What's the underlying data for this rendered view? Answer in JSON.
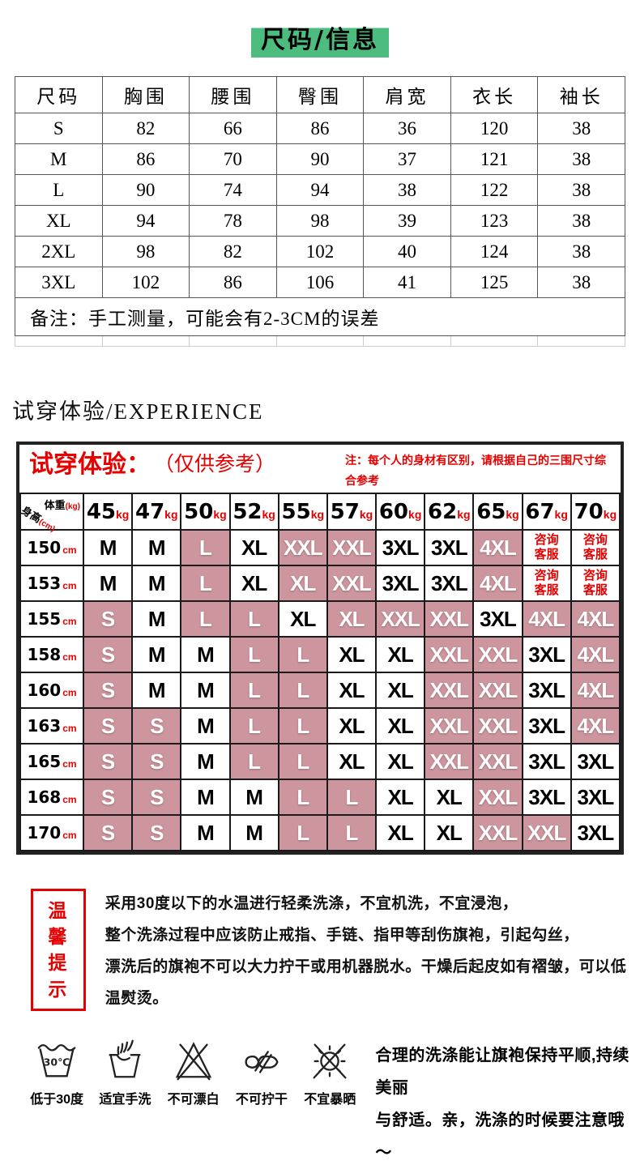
{
  "title": {
    "text": "尺码/信息"
  },
  "size_table": {
    "headers": [
      "尺码",
      "胸围",
      "腰围",
      "臀围",
      "肩宽",
      "衣长",
      "袖长"
    ],
    "rows": [
      [
        "S",
        "82",
        "66",
        "86",
        "36",
        "120",
        "38"
      ],
      [
        "M",
        "86",
        "70",
        "90",
        "37",
        "121",
        "38"
      ],
      [
        "L",
        "90",
        "74",
        "94",
        "38",
        "122",
        "38"
      ],
      [
        "XL",
        "94",
        "78",
        "98",
        "39",
        "123",
        "38"
      ],
      [
        "2XL",
        "98",
        "82",
        "102",
        "40",
        "124",
        "38"
      ],
      [
        "3XL",
        "102",
        "86",
        "106",
        "41",
        "125",
        "38"
      ]
    ],
    "note": "备注：手工测量，可能会有2-3CM的误差"
  },
  "experience": {
    "heading": "试穿体验/EXPERIENCE",
    "panel_title": "试穿体验：",
    "panel_subtitle": "（仅供参考）",
    "note": "注：每个人的身材有区别，请根据自己的三围尺寸综合参考",
    "corner": {
      "weight_label": "体重",
      "weight_unit": "(kg)",
      "height_label": "身高",
      "height_unit": "(cm)"
    },
    "weight_columns": [
      {
        "value": "45",
        "unit": "kg"
      },
      {
        "value": "47",
        "unit": "kg"
      },
      {
        "value": "50",
        "unit": "kg"
      },
      {
        "value": "52",
        "unit": "kg"
      },
      {
        "value": "55",
        "unit": "kg"
      },
      {
        "value": "57",
        "unit": "kg"
      },
      {
        "value": "60",
        "unit": "kg"
      },
      {
        "value": "62",
        "unit": "kg"
      },
      {
        "value": "65",
        "unit": "kg"
      },
      {
        "value": "67",
        "unit": "kg"
      },
      {
        "value": "70",
        "unit": "kg"
      }
    ],
    "rows": [
      {
        "height": "150",
        "unit": "cm",
        "cells": [
          {
            "size": "M"
          },
          {
            "size": "M"
          },
          {
            "size": "L",
            "hl": true
          },
          {
            "size": "XL"
          },
          {
            "size": "XXL",
            "hl": true
          },
          {
            "size": "XXL",
            "hl": true
          },
          {
            "size": "3XL"
          },
          {
            "size": "3XL"
          },
          {
            "size": "4XL",
            "hl": true
          },
          {
            "service": [
              "咨询",
              "客服"
            ]
          },
          {
            "service": [
              "咨询",
              "客服"
            ]
          }
        ]
      },
      {
        "height": "153",
        "unit": "cm",
        "cells": [
          {
            "size": "M"
          },
          {
            "size": "M"
          },
          {
            "size": "L",
            "hl": true
          },
          {
            "size": "XL"
          },
          {
            "size": "XL",
            "hl": true
          },
          {
            "size": "XXL",
            "hl": true
          },
          {
            "size": "3XL"
          },
          {
            "size": "3XL"
          },
          {
            "size": "4XL",
            "hl": true
          },
          {
            "service": [
              "咨询",
              "客服"
            ]
          },
          {
            "service": [
              "咨询",
              "客服"
            ]
          }
        ]
      },
      {
        "height": "155",
        "unit": "cm",
        "cells": [
          {
            "size": "S",
            "hl": true
          },
          {
            "size": "M"
          },
          {
            "size": "L",
            "hl": true
          },
          {
            "size": "L",
            "hl": true
          },
          {
            "size": "XL"
          },
          {
            "size": "XL",
            "hl": true
          },
          {
            "size": "XXL",
            "hl": true
          },
          {
            "size": "XXL",
            "hl": true
          },
          {
            "size": "3XL"
          },
          {
            "size": "4XL",
            "hl": true
          },
          {
            "size": "4XL",
            "hl": true
          }
        ]
      },
      {
        "height": "158",
        "unit": "cm",
        "cells": [
          {
            "size": "S",
            "hl": true
          },
          {
            "size": "M"
          },
          {
            "size": "M"
          },
          {
            "size": "L",
            "hl": true
          },
          {
            "size": "L",
            "hl": true
          },
          {
            "size": "XL"
          },
          {
            "size": "XL"
          },
          {
            "size": "XXL",
            "hl": true
          },
          {
            "size": "XXL",
            "hl": true
          },
          {
            "size": "3XL"
          },
          {
            "size": "4XL",
            "hl": true
          }
        ]
      },
      {
        "height": "160",
        "unit": "cm",
        "cells": [
          {
            "size": "S",
            "hl": true
          },
          {
            "size": "M"
          },
          {
            "size": "M"
          },
          {
            "size": "L",
            "hl": true
          },
          {
            "size": "L",
            "hl": true
          },
          {
            "size": "XL"
          },
          {
            "size": "XL"
          },
          {
            "size": "XXL",
            "hl": true
          },
          {
            "size": "XXL",
            "hl": true
          },
          {
            "size": "3XL"
          },
          {
            "size": "4XL",
            "hl": true
          }
        ]
      },
      {
        "height": "163",
        "unit": "cm",
        "cells": [
          {
            "size": "S",
            "hl": true
          },
          {
            "size": "S",
            "hl": true
          },
          {
            "size": "M"
          },
          {
            "size": "L",
            "hl": true
          },
          {
            "size": "L",
            "hl": true
          },
          {
            "size": "XL"
          },
          {
            "size": "XL"
          },
          {
            "size": "XXL",
            "hl": true
          },
          {
            "size": "XXL",
            "hl": true
          },
          {
            "size": "3XL"
          },
          {
            "size": "4XL",
            "hl": true
          }
        ]
      },
      {
        "height": "165",
        "unit": "cm",
        "cells": [
          {
            "size": "S",
            "hl": true
          },
          {
            "size": "S",
            "hl": true
          },
          {
            "size": "M"
          },
          {
            "size": "L",
            "hl": true
          },
          {
            "size": "L",
            "hl": true
          },
          {
            "size": "XL"
          },
          {
            "size": "XL"
          },
          {
            "size": "XXL",
            "hl": true
          },
          {
            "size": "XXL",
            "hl": true
          },
          {
            "size": "3XL"
          },
          {
            "size": "3XL"
          }
        ]
      },
      {
        "height": "168",
        "unit": "cm",
        "cells": [
          {
            "size": "S",
            "hl": true
          },
          {
            "size": "S",
            "hl": true
          },
          {
            "size": "M"
          },
          {
            "size": "M"
          },
          {
            "size": "L",
            "hl": true
          },
          {
            "size": "L",
            "hl": true
          },
          {
            "size": "XL"
          },
          {
            "size": "XL"
          },
          {
            "size": "XXL",
            "hl": true
          },
          {
            "size": "3XL"
          },
          {
            "size": "3XL"
          }
        ]
      },
      {
        "height": "170",
        "unit": "cm",
        "cells": [
          {
            "size": "S",
            "hl": true
          },
          {
            "size": "S",
            "hl": true
          },
          {
            "size": "M"
          },
          {
            "size": "M"
          },
          {
            "size": "L",
            "hl": true
          },
          {
            "size": "L",
            "hl": true
          },
          {
            "size": "XL"
          },
          {
            "size": "XL"
          },
          {
            "size": "XXL",
            "hl": true
          },
          {
            "size": "XXL",
            "hl": true
          },
          {
            "size": "3XL"
          }
        ]
      }
    ]
  },
  "tips": {
    "badge_line1": "温馨",
    "badge_line2": "提示",
    "lines": [
      "采用30度以下的水温进行轻柔洗涤，不宜机洗，不宜浸泡，",
      "整个洗涤过程中应该防止戒指、手链、指甲等刮伤旗袍，引起勾丝，",
      "漂洗后的旗袍不可以大力拧干或用机器脱水。干燥后起皮如有褶皱，可以低温熨烫。"
    ]
  },
  "care": {
    "temp_text": "30℃",
    "icons": [
      {
        "name": "wash-below-30-icon",
        "label": "低于30度"
      },
      {
        "name": "hand-wash-icon",
        "label": "适宜手洗"
      },
      {
        "name": "no-bleach-icon",
        "label": "不可漂白"
      },
      {
        "name": "no-wring-icon",
        "label": "不可拧干"
      },
      {
        "name": "no-sun-exposure-icon",
        "label": "不宜暴晒"
      }
    ],
    "text_line1": "合理的洗涤能让旗袍保持平顺,持续美丽",
    "text_line2": "与舒适。亲，洗涤的时候要注意哦～"
  },
  "colors": {
    "green_highlight": "#4cbc7f",
    "pink_cell": "#cd959d",
    "accent_red": "#e60000"
  }
}
